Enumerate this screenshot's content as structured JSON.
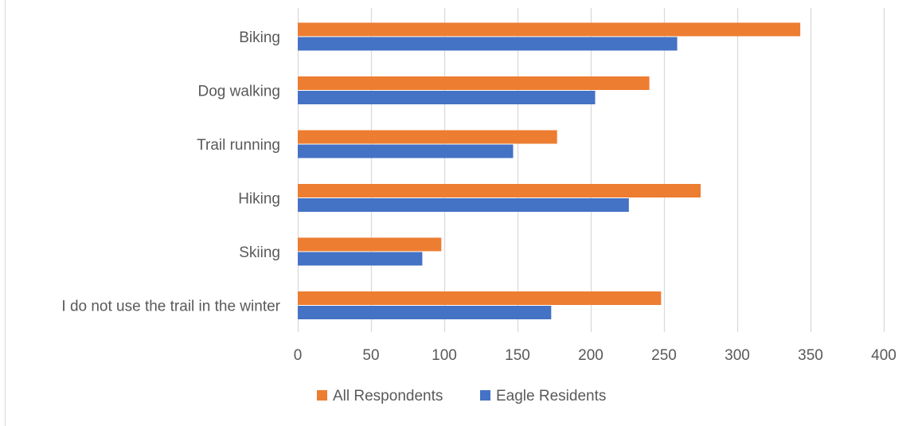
{
  "chart_data": {
    "type": "bar",
    "orientation": "horizontal",
    "categories": [
      "Biking",
      "Dog walking",
      "Trail running",
      "Hiking",
      "Skiing",
      "I do not use the trail in the winter"
    ],
    "series": [
      {
        "name": "All Respondents",
        "color": "#ED7D31",
        "values": [
          343,
          240,
          177,
          275,
          98,
          248
        ]
      },
      {
        "name": "Eagle Residents",
        "color": "#4472C4",
        "values": [
          259,
          203,
          147,
          226,
          85,
          173
        ]
      }
    ],
    "xlim": [
      0,
      400
    ],
    "xticks": [
      0,
      50,
      100,
      150,
      200,
      250,
      300,
      350,
      400
    ],
    "grid": "vertical",
    "legend": "bottom",
    "title": "",
    "xlabel": "",
    "ylabel": ""
  }
}
